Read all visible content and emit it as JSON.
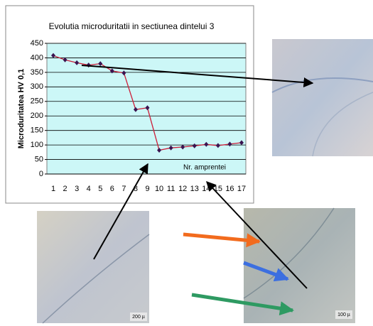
{
  "chart_data": {
    "type": "line",
    "title": "Evolutia microduritatii in sectiunea dintelui 3",
    "y_label": "Microduritatea HV 0,1",
    "x_label": "Nr. amprentei",
    "categories": [
      "1",
      "2",
      "3",
      "4",
      "5",
      "6",
      "7",
      "8",
      "9",
      "10",
      "11",
      "12",
      "13",
      "14",
      "15",
      "16",
      "17"
    ],
    "values": [
      408,
      393,
      383,
      375,
      380,
      355,
      348,
      222,
      228,
      82,
      90,
      93,
      97,
      102,
      98,
      103,
      108
    ],
    "color": "#cc1f3a",
    "marker_color": "#3a1450",
    "ylim": [
      0,
      450
    ],
    "yticks": [
      0,
      50,
      100,
      150,
      200,
      250,
      300,
      350,
      400,
      450
    ],
    "grid": true
  },
  "photo_labels": [
    "200 µ",
    "100 µ"
  ]
}
